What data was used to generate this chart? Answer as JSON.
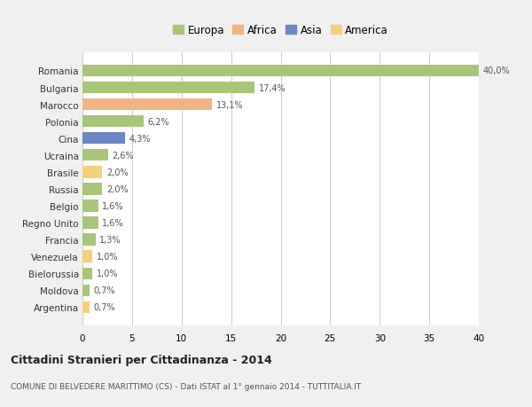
{
  "countries": [
    "Romania",
    "Bulgaria",
    "Marocco",
    "Polonia",
    "Cina",
    "Ucraina",
    "Brasile",
    "Russia",
    "Belgio",
    "Regno Unito",
    "Francia",
    "Venezuela",
    "Bielorussia",
    "Moldova",
    "Argentina"
  ],
  "values": [
    40.0,
    17.4,
    13.1,
    6.2,
    4.3,
    2.6,
    2.0,
    2.0,
    1.6,
    1.6,
    1.3,
    1.0,
    1.0,
    0.7,
    0.7
  ],
  "labels": [
    "40,0%",
    "17,4%",
    "13,1%",
    "6,2%",
    "4,3%",
    "2,6%",
    "2,0%",
    "2,0%",
    "1,6%",
    "1,6%",
    "1,3%",
    "1,0%",
    "1,0%",
    "0,7%",
    "0,7%"
  ],
  "colors": [
    "#a8c57a",
    "#a8c57a",
    "#f0b482",
    "#a8c57a",
    "#6b87c4",
    "#a8c57a",
    "#f5d07a",
    "#a8c57a",
    "#a8c57a",
    "#a8c57a",
    "#a8c57a",
    "#f5d07a",
    "#a8c57a",
    "#a8c57a",
    "#f5d07a"
  ],
  "continent_colors": {
    "Europa": "#a8c57a",
    "Africa": "#f0b482",
    "Asia": "#6b87c4",
    "America": "#f5d07a"
  },
  "xlim": [
    0,
    40
  ],
  "xticks": [
    0,
    5,
    10,
    15,
    20,
    25,
    30,
    35,
    40
  ],
  "title": "Cittadini Stranieri per Cittadinanza - 2014",
  "subtitle": "COMUNE DI BELVEDERE MARITTIMO (CS) - Dati ISTAT al 1° gennaio 2014 - TUTTITALIA.IT",
  "fig_bg_color": "#f0f0f0",
  "plot_bg_color": "#ffffff",
  "grid_color": "#cccccc",
  "label_color": "#555555",
  "text_color": "#333333"
}
